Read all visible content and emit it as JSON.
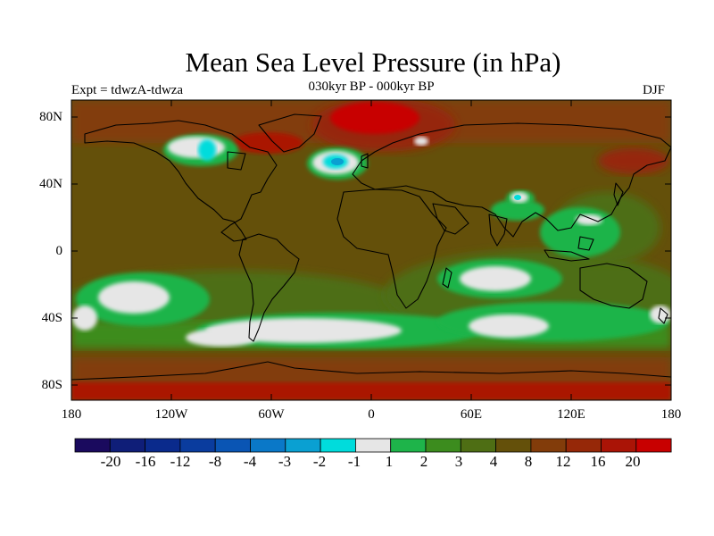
{
  "map": {
    "title": "Mean Sea Level Pressure (in hPa)",
    "experiment": "Expt = tdwzA-tdwza",
    "period": "030kyr BP - 000kyr BP",
    "season": "DJF",
    "lat_labels": [
      "80N",
      "40N",
      "0",
      "40S",
      "80S"
    ],
    "lon_labels": [
      "180",
      "120W",
      "60W",
      "0",
      "60E",
      "120E",
      "180"
    ]
  },
  "colorbar": {
    "labels": [
      "-20",
      "-16",
      "-12",
      "-8",
      "-4",
      "-3",
      "-2",
      "-1",
      "1",
      "2",
      "3",
      "4",
      "8",
      "12",
      "16",
      "20"
    ],
    "colors": [
      "#1a0a5e",
      "#0f1e78",
      "#0a2a8c",
      "#0a3c9e",
      "#0a55b4",
      "#0a78c8",
      "#0aa0d2",
      "#00dcdc",
      "#e6e6e6",
      "#1eb44a",
      "#3c8c1e",
      "#4e6e14",
      "#64500a",
      "#823c0a",
      "#962808",
      "#aa1406",
      "#c80000"
    ]
  }
}
